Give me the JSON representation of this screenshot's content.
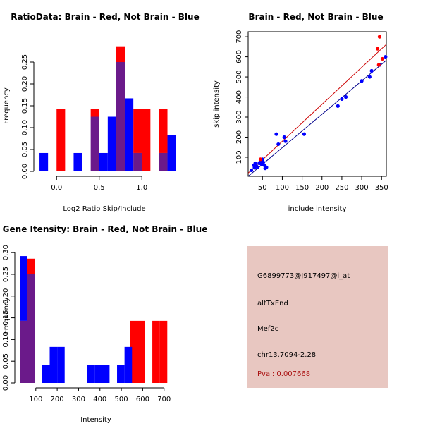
{
  "colors": {
    "brain": "#ff0000",
    "not_brain": "#0000ff",
    "overlap": "#6b1a8a",
    "brain_line": "#cc0000",
    "not_brain_line": "#00008b",
    "panel_bg": "#e8c7c1",
    "pval_text": "#aa1111"
  },
  "chart_data": [
    {
      "id": "ratio",
      "type": "bar",
      "title": "RatioData: Brain - Red, Not Brain - Blue",
      "xlabel": "Log2 Ratio Skip/Include",
      "ylabel": "Frequency",
      "xlim": [
        -0.25,
        1.37
      ],
      "ylim": [
        0,
        0.3
      ],
      "xticks": [
        0.0,
        0.5,
        1.0
      ],
      "xtick_labels": [
        "0.0",
        "0.5",
        "1.0"
      ],
      "yticks": [
        0.0,
        0.05,
        0.1,
        0.15,
        0.2,
        0.25
      ],
      "ytick_labels": [
        "0.00",
        "0.05",
        "0.10",
        "0.15",
        "0.20",
        "0.25"
      ],
      "series": [
        {
          "name": "Brain",
          "bins": [
            [
              0.0,
              0.1,
              0.143
            ],
            [
              0.4,
              0.5,
              0.143
            ],
            [
              0.7,
              0.8,
              0.286
            ],
            [
              0.9,
              1.0,
              0.143
            ],
            [
              1.0,
              1.1,
              0.143
            ],
            [
              1.2,
              1.3,
              0.143
            ]
          ]
        },
        {
          "name": "Not Brain",
          "bins": [
            [
              -0.2,
              -0.1,
              0.042
            ],
            [
              0.2,
              0.3,
              0.042
            ],
            [
              0.4,
              0.5,
              0.125
            ],
            [
              0.5,
              0.6,
              0.042
            ],
            [
              0.6,
              0.7,
              0.125
            ],
            [
              0.7,
              0.8,
              0.25
            ],
            [
              0.8,
              0.9,
              0.167
            ],
            [
              0.9,
              1.0,
              0.042
            ],
            [
              1.2,
              1.3,
              0.042
            ],
            [
              1.3,
              1.4,
              0.083
            ]
          ]
        }
      ]
    },
    {
      "id": "scatter",
      "type": "scatter",
      "title": "Brain - Red, Not Brain - Blue",
      "xlabel": "include intensity",
      "ylabel": "skip intensity",
      "xlim": [
        14,
        362
      ],
      "ylim": [
        5,
        725
      ],
      "xticks": [
        50,
        100,
        150,
        200,
        250,
        300,
        350
      ],
      "xtick_labels": [
        "50",
        "100",
        "150",
        "200",
        "250",
        "300",
        "350"
      ],
      "yticks": [
        100,
        200,
        300,
        400,
        500,
        600,
        700
      ],
      "ytick_labels": [
        "100",
        "200",
        "300",
        "400",
        "500",
        "600",
        "700"
      ],
      "series": [
        {
          "name": "Brain",
          "points": [
            [
              45,
              90
            ],
            [
              340,
              640
            ],
            [
              345,
              700
            ],
            [
              343,
              560
            ],
            [
              352,
              590
            ]
          ],
          "fit": [
            [
              14,
              21
            ],
            [
              362,
              662
            ]
          ]
        },
        {
          "name": "Not Brain",
          "points": [
            [
              22,
              35
            ],
            [
              28,
              60
            ],
            [
              30,
              48
            ],
            [
              32,
              70
            ],
            [
              35,
              55
            ],
            [
              38,
              50
            ],
            [
              42,
              70
            ],
            [
              45,
              80
            ],
            [
              48,
              65
            ],
            [
              50,
              90
            ],
            [
              52,
              75
            ],
            [
              55,
              60
            ],
            [
              57,
              45
            ],
            [
              60,
              50
            ],
            [
              85,
              215
            ],
            [
              90,
              165
            ],
            [
              105,
              200
            ],
            [
              108,
              180
            ],
            [
              155,
              215
            ],
            [
              240,
              355
            ],
            [
              250,
              390
            ],
            [
              260,
              400
            ],
            [
              300,
              480
            ],
            [
              320,
              500
            ],
            [
              325,
              530
            ],
            [
              345,
              560
            ],
            [
              360,
              600
            ]
          ],
          "fit": [
            [
              14,
              5
            ],
            [
              362,
              583
            ]
          ]
        }
      ]
    },
    {
      "id": "intensity",
      "type": "bar",
      "title": "Gene Itensity: Brain - Red, Not Brain - Blue",
      "xlabel": "Intensity",
      "ylabel": "Frequency",
      "xlim": [
        15,
        747
      ],
      "ylim": [
        0,
        0.31
      ],
      "xticks": [
        100,
        200,
        300,
        400,
        500,
        600,
        700
      ],
      "xtick_labels": [
        "100",
        "200",
        "300",
        "400",
        "500",
        "600",
        "700"
      ],
      "yticks": [
        0.0,
        0.05,
        0.1,
        0.15,
        0.2,
        0.25,
        0.3
      ],
      "ytick_labels": [
        "0.00",
        "0.05",
        "0.10",
        "0.15",
        "0.20",
        "0.25",
        "0.30"
      ],
      "series": [
        {
          "name": "Brain",
          "bins": [
            [
              25,
              60,
              0.143
            ],
            [
              60,
              95,
              0.286
            ],
            [
              540,
              575,
              0.143
            ],
            [
              575,
              610,
              0.143
            ],
            [
              645,
              680,
              0.143
            ],
            [
              680,
              715,
              0.143
            ]
          ]
        },
        {
          "name": "Not Brain",
          "bins": [
            [
              25,
              60,
              0.292
            ],
            [
              60,
              95,
              0.25
            ],
            [
              130,
              165,
              0.042
            ],
            [
              165,
              200,
              0.083
            ],
            [
              200,
              235,
              0.083
            ],
            [
              340,
              375,
              0.042
            ],
            [
              375,
              410,
              0.042
            ],
            [
              410,
              445,
              0.042
            ],
            [
              480,
              515,
              0.042
            ],
            [
              515,
              550,
              0.083
            ]
          ]
        }
      ]
    }
  ],
  "info": {
    "probe": "G6899773@J917497@i_at",
    "event": "altTxEnd",
    "gene": "Mef2c",
    "location": "chr13.7094-2.28",
    "pval": "Pval: 0.007668"
  }
}
